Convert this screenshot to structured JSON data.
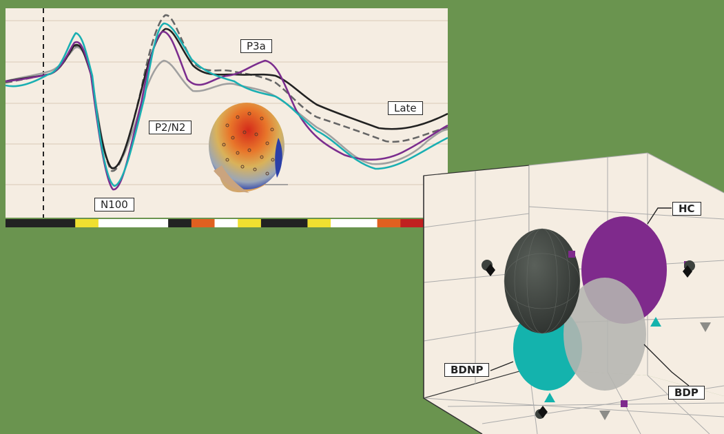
{
  "colors": {
    "background": "#6a944f",
    "panel": "#f5ede2",
    "grid": "#d9c9b6",
    "black_trace": "#222222",
    "dashed_trace": "#666666",
    "gray_trace": "#a0a0a0",
    "teal_trace": "#1aafb2",
    "purple_trace": "#7b2d8e",
    "teal_group": "#14b3ad",
    "purple_group": "#7f2a8c",
    "gray_group": "#b5b5b1",
    "dark_group": "#3d423e"
  },
  "erp_panel": {
    "labels": {
      "n100": "N100",
      "p2n2": "P2/N2",
      "p3a": "P3a",
      "late": "Late"
    },
    "timeline_colors": [
      "#222222",
      "#222222",
      "#222222",
      "#f0e030",
      "#ffffff",
      "#ffffff",
      "#ffffff",
      "#222222",
      "#e06020",
      "#ffffff",
      "#f0e030",
      "#222222",
      "#222222",
      "#f0e030",
      "#ffffff",
      "#ffffff",
      "#e06020",
      "#c02020"
    ],
    "topomap": "scalp-topography-head"
  },
  "cluster_panel": {
    "labels": {
      "hc": "HC",
      "bdnp": "BDNP",
      "bdp": "BDP"
    }
  }
}
